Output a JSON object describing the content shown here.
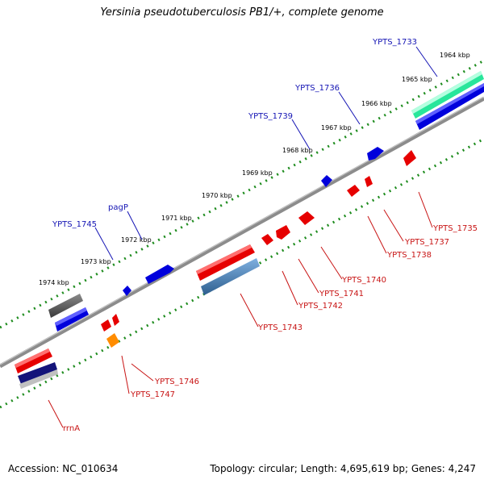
{
  "title": "Yersinia pseudotuberculosis PB1/+, complete genome",
  "footer": {
    "accession": "Accession: NC_010634",
    "summary": "Topology: circular; Length: 4,695,619 bp; Genes: 4,247"
  },
  "ticks": [
    "1964 kbp",
    "1965 kbp",
    "1966 kbp",
    "1967 kbp",
    "1968 kbp",
    "1969 kbp",
    "1970 kbp",
    "1971 kbp",
    "1972 kbp",
    "1973 kbp",
    "1974 kbp"
  ],
  "genes_top": [
    "YPTS_1733",
    "YPTS_1736",
    "YPTS_1739",
    "pagP",
    "YPTS_1745"
  ],
  "genes_bottom": [
    "YPTS_1735",
    "YPTS_1737",
    "YPTS_1738",
    "YPTS_1740",
    "YPTS_1741",
    "YPTS_1742",
    "YPTS_1743",
    "YPTS_1746",
    "YPTS_1747",
    "rrnA"
  ],
  "colors": {
    "backbone": "#808080",
    "tick_dots": "#1e8c1e",
    "cds_blue": "#0000dc",
    "cds_red": "#e60000",
    "rrna_green": "#28e69b",
    "trna_orange": "#ff8c00",
    "steel": "#4682b4",
    "gray": "#505050",
    "navy": "#14147a",
    "label_blue": "#1414b4",
    "label_red": "#c81414"
  }
}
